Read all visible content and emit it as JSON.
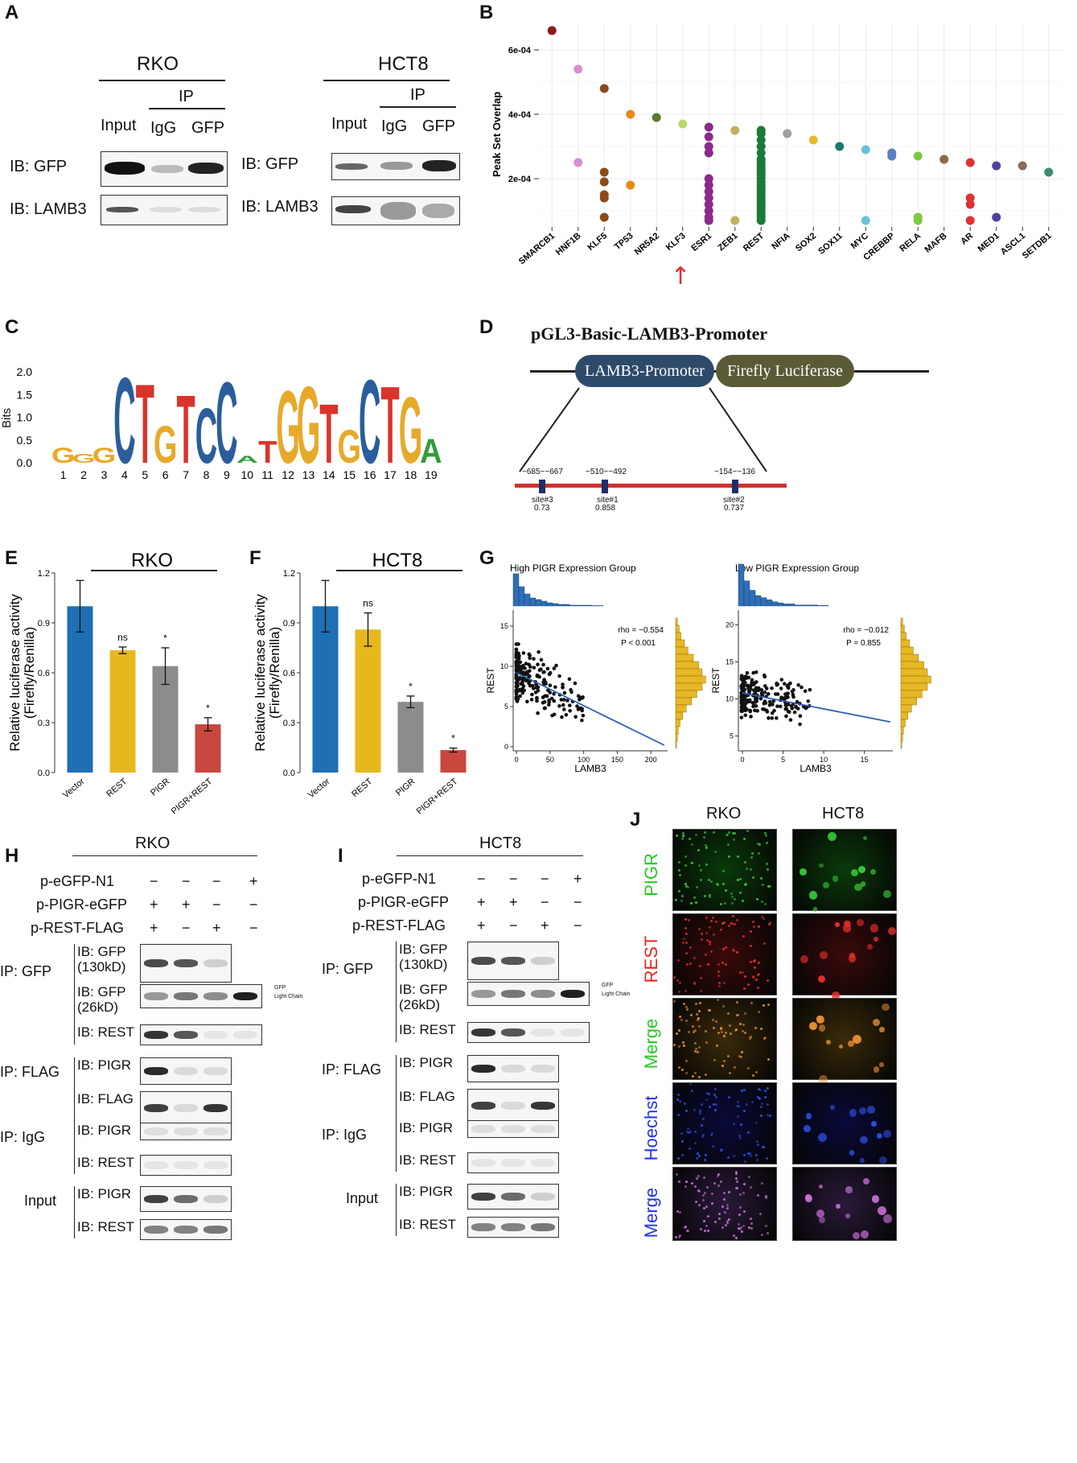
{
  "panel_letters": {
    "A": "A",
    "B": "B",
    "C": "C",
    "D": "D",
    "E": "E",
    "F": "F",
    "G": "G",
    "H": "H",
    "I": "I",
    "J": "J"
  },
  "panelA": {
    "rko": {
      "title": "RKO",
      "ip": "IP",
      "input": "Input",
      "igg": "IgG",
      "gfp": "GFP",
      "ib_gfp": "IB: GFP",
      "ib_lamb3": "IB: LAMB3"
    },
    "hct8": {
      "title": "HCT8",
      "ip": "IP",
      "input": "Input",
      "igg": "IgG",
      "gfp": "GFP",
      "ib_gfp": "IB: GFP",
      "ib_lamb3": "IB: LAMB3"
    }
  },
  "panelC": {
    "ylabel": "Bits",
    "yticks": [
      "2.0",
      "1.5",
      "1.0",
      "0.5",
      "0.0"
    ],
    "positions": [
      "1",
      "2",
      "3",
      "4",
      "5",
      "6",
      "7",
      "8",
      "9",
      "10",
      "11",
      "12",
      "13",
      "14",
      "15",
      "16",
      "17",
      "18",
      "19"
    ]
  },
  "panelD": {
    "title": "pGL3-Basic-LAMB3-Promoter",
    "promoter": "LAMB3-Promoter",
    "luciferase": "Firefly Luciferase",
    "sites": [
      {
        "range": "−685~−667",
        "name": "site#3",
        "score": "0.73"
      },
      {
        "range": "−510~−492",
        "name": "site#1",
        "score": "0.858"
      },
      {
        "range": "−154~−136",
        "name": "site#2",
        "score": "0.737"
      }
    ]
  },
  "panelH": {
    "title": "RKO",
    "rows": [
      "p-eGFP-N1",
      "p-PIGR-eGFP",
      "p-REST-FLAG"
    ],
    "signs": [
      [
        "−",
        "−",
        "−",
        "+"
      ],
      [
        "+",
        "+",
        "−",
        "−"
      ],
      [
        "+",
        "−",
        "+",
        "−"
      ]
    ],
    "ip_gfp": "IP: GFP",
    "ip_flag": "IP: FLAG",
    "ip_igg": "IP: IgG",
    "input": "Input",
    "ib_gfp130": "IB: GFP\n(130kD)",
    "ib_gfp26": "IB: GFP\n(26kD)",
    "ib_rest": "IB: REST",
    "ib_pigr": "IB: PIGR",
    "ib_flag": "IB: FLAG",
    "gfp_mark": "GFP",
    "lc_mark": "Light Chain"
  },
  "panelI": {
    "title": "HCT8"
  },
  "panelJ": {
    "cols": [
      "RKO",
      "HCT8"
    ],
    "rows": [
      {
        "label": "PIGR",
        "color": "#22cc22"
      },
      {
        "label": "REST",
        "color": "#ee2222"
      },
      {
        "label": "Merge",
        "color": "#22cc22"
      },
      {
        "label": "Hoechst",
        "color": "#2233ee"
      },
      {
        "label": "Merge",
        "color": "#2233ee"
      }
    ]
  },
  "chart_data": [
    {
      "id": "B",
      "type": "scatter",
      "ylabel": "Peak Set Overlap",
      "categories": [
        "SMARCB1",
        "HNF1B",
        "KLF5",
        "TP53",
        "NR5A2",
        "KLF3",
        "ESR1",
        "ZEB1",
        "REST",
        "NFIA",
        "SOX2",
        "SOX11",
        "MYC",
        "CREBBP",
        "RELA",
        "MAFB",
        "AR",
        "MED1",
        "ASCL1",
        "SETDB1"
      ],
      "yticks": [
        "2e-04",
        "4e-04",
        "6e-04"
      ],
      "ylim": [
        5e-05,
        0.00068
      ],
      "colors": [
        "#8b1a1a",
        "#d98fcf",
        "#8b4a1a",
        "#e88a1a",
        "#5a7a30",
        "#b9d86a",
        "#8a2a8a",
        "#c0b060",
        "#1a7a3a",
        "#a0a0a0",
        "#e8b830",
        "#1a7a70",
        "#6ac0d8",
        "#5a80c0",
        "#80c840",
        "#8a6a4a",
        "#e03030",
        "#5040a0",
        "#8a6a5a",
        "#3a8a70"
      ],
      "points": [
        [
          0.00066
        ],
        [
          0.00054,
          0.00025
        ],
        [
          0.00048,
          0.00022,
          0.00019,
          0.00015,
          0.00014,
          8e-05
        ],
        [
          0.0004,
          0.00018
        ],
        [
          0.00039
        ],
        [
          0.00037
        ],
        [
          0.00036,
          0.00033,
          0.0003,
          0.00028,
          0.0002,
          0.00018,
          0.00016,
          0.00014,
          0.00012,
          0.0001,
          8e-05,
          7e-05
        ],
        [
          0.00035,
          7e-05
        ],
        [
          0.00035,
          0.00034,
          0.00032,
          0.0003,
          0.00028,
          0.00026,
          0.00025,
          0.00024,
          0.00023,
          0.00022,
          0.00021,
          0.0002,
          0.00019,
          0.00018,
          0.00017,
          0.00016,
          0.00015,
          0.00014,
          0.00013,
          0.00012,
          0.00011,
          0.0001,
          9e-05,
          8e-05,
          7e-05
        ],
        [
          0.00034
        ],
        [
          0.00032
        ],
        [
          0.0003
        ],
        [
          0.00029,
          7e-05
        ],
        [
          0.00028,
          0.00027
        ],
        [
          0.00027,
          8e-05,
          7e-05
        ],
        [
          0.00026
        ],
        [
          0.00025,
          0.00014,
          0.00012,
          7e-05
        ],
        [
          0.00024,
          8e-05
        ],
        [
          0.00024
        ],
        [
          0.00022
        ]
      ],
      "annotation": "↑"
    },
    {
      "id": "E",
      "type": "bar",
      "title": "RKO",
      "ylabel": "Relative luciferase activity\n(Firefly/Renilla)",
      "categories": [
        "Vector",
        "REST",
        "PIGR",
        "PIGR+REST"
      ],
      "values": [
        1.0,
        0.735,
        0.64,
        0.29
      ],
      "errors": [
        0.155,
        0.02,
        0.11,
        0.04
      ],
      "sig": [
        "",
        "ns",
        "*",
        "*"
      ],
      "colors": [
        "#1f6fb4",
        "#e6b81e",
        "#8c8c8c",
        "#c9473f"
      ],
      "ylim": [
        0,
        1.2
      ],
      "yticks": [
        "0.0",
        "0.3",
        "0.6",
        "0.9",
        "1.2"
      ]
    },
    {
      "id": "F",
      "type": "bar",
      "title": "HCT8",
      "ylabel": "Relative luciferase activity\n(Firefly/Renilla)",
      "categories": [
        "Vector",
        "REST",
        "PIGR",
        "PIGR+REST"
      ],
      "values": [
        1.0,
        0.86,
        0.425,
        0.135
      ],
      "errors": [
        0.155,
        0.1,
        0.035,
        0.012
      ],
      "sig": [
        "",
        "ns",
        "*",
        "*"
      ],
      "colors": [
        "#1f6fb4",
        "#e6b81e",
        "#8c8c8c",
        "#c9473f"
      ],
      "ylim": [
        0,
        1.2
      ],
      "yticks": [
        "0.0",
        "0.3",
        "0.6",
        "0.9",
        "1.2"
      ]
    },
    {
      "id": "G1",
      "type": "scatter",
      "title": "High PIGR Expression Group",
      "xlabel": "LAMB3",
      "ylabel": "REST",
      "stats": [
        "rho = −0.554",
        "P < 0.001"
      ],
      "xticks": [
        "0",
        "50",
        "100",
        "150",
        "200"
      ],
      "yticks": [
        "0",
        "5",
        "10",
        "15"
      ],
      "xlim": [
        -5,
        225
      ],
      "ylim": [
        -0.5,
        17
      ],
      "fit": [
        [
          0,
          9.2
        ],
        [
          220,
          0.2
        ]
      ]
    },
    {
      "id": "G2",
      "type": "scatter",
      "title": "Low PIGR Expression Group",
      "xlabel": "LAMB3",
      "ylabel": "REST",
      "stats": [
        "rho = −0.012",
        "P = 0.855"
      ],
      "xticks": [
        "0",
        "5",
        "10",
        "15"
      ],
      "yticks": [
        "5",
        "10",
        "15",
        "20"
      ],
      "xlim": [
        -0.5,
        18.5
      ],
      "ylim": [
        3,
        22
      ],
      "fit": [
        [
          0,
          10.8
        ],
        [
          18.2,
          6.9
        ]
      ]
    }
  ]
}
